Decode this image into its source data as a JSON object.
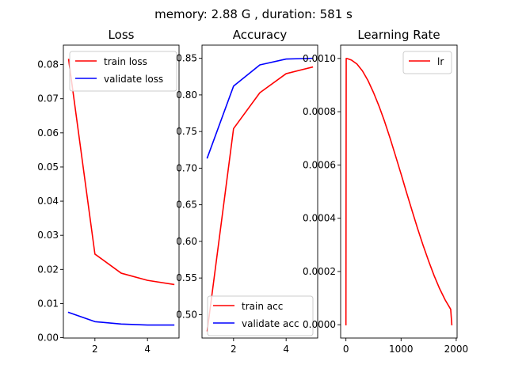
{
  "figure": {
    "suptitle": "memory: 2.88 G , duration: 581 s"
  },
  "chart_data": [
    {
      "type": "line",
      "title": "Loss",
      "xlabel": "",
      "ylabel": "",
      "xlim": [
        0.8,
        5.2
      ],
      "ylim": [
        -0.0001,
        0.0857
      ],
      "x_ticks": [
        2,
        4
      ],
      "y_ticks": [
        0.0,
        0.01,
        0.02,
        0.03,
        0.04,
        0.05,
        0.06,
        0.07,
        0.08
      ],
      "y_tick_labels": [
        "0.00",
        "0.01",
        "0.02",
        "0.03",
        "0.04",
        "0.05",
        "0.06",
        "0.07",
        "0.08"
      ],
      "legend_position": "upper right",
      "series": [
        {
          "name": "train loss",
          "color": "#ff0000",
          "x": [
            1,
            2,
            3,
            4,
            5
          ],
          "values": [
            0.0815,
            0.0245,
            0.0189,
            0.0168,
            0.0156
          ]
        },
        {
          "name": "validate loss",
          "color": "#0000ff",
          "x": [
            1,
            2,
            3,
            4,
            5
          ],
          "values": [
            0.0074,
            0.0047,
            0.004,
            0.0037,
            0.0037
          ]
        }
      ]
    },
    {
      "type": "line",
      "title": "Accuracy",
      "xlabel": "",
      "ylabel": "",
      "xlim": [
        0.8,
        5.2
      ],
      "ylim": [
        0.468,
        0.868
      ],
      "x_ticks": [
        2,
        4
      ],
      "y_ticks": [
        0.5,
        0.55,
        0.6,
        0.65,
        0.7,
        0.75,
        0.8,
        0.85
      ],
      "y_tick_labels": [
        "0.50",
        "0.55",
        "0.60",
        "0.65",
        "0.70",
        "0.75",
        "0.80",
        "0.85"
      ],
      "legend_position": "lower right",
      "series": [
        {
          "name": "train acc",
          "color": "#ff0000",
          "x": [
            1,
            2,
            3,
            4,
            5
          ],
          "values": [
            0.478,
            0.754,
            0.803,
            0.829,
            0.838
          ]
        },
        {
          "name": "validate acc",
          "color": "#0000ff",
          "x": [
            1,
            2,
            3,
            4,
            5
          ],
          "values": [
            0.714,
            0.812,
            0.841,
            0.849,
            0.85
          ]
        }
      ]
    },
    {
      "type": "line",
      "title": "Learning Rate",
      "xlabel": "",
      "ylabel": "",
      "xlim": [
        -96,
        2016
      ],
      "ylim": [
        -5e-05,
        0.00105
      ],
      "x_ticks": [
        0,
        1000,
        2000
      ],
      "y_ticks": [
        0.0,
        0.0002,
        0.0004,
        0.0006,
        0.0008,
        0.001
      ],
      "y_tick_labels": [
        "0.0000",
        "0.0002",
        "0.0004",
        "0.0006",
        "0.0008",
        "0.0010"
      ],
      "legend_position": "upper right",
      "schedule": "linear warmup then cosine decay",
      "series": [
        {
          "name": "lr",
          "color": "#ff0000",
          "x": [
            0,
            5,
            10,
            30,
            100,
            200,
            300,
            400,
            500,
            600,
            700,
            800,
            900,
            1000,
            1100,
            1200,
            1300,
            1400,
            1500,
            1600,
            1700,
            1800,
            1900,
            1920
          ],
          "values": [
            0.0,
            0.001,
            0.001,
            0.000999,
            0.000994,
            0.000979,
            0.000953,
            0.000917,
            0.000872,
            0.000821,
            0.000764,
            0.000701,
            0.000634,
            0.000566,
            0.000496,
            0.000428,
            0.000361,
            0.000298,
            0.000239,
            0.000184,
            0.000135,
            9.3e-05,
            5.8e-05,
            0.0
          ]
        }
      ]
    }
  ]
}
